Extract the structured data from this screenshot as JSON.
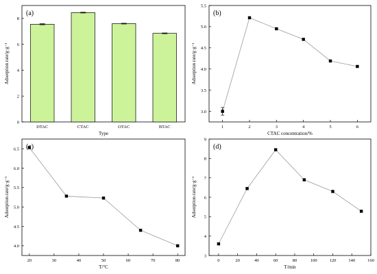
{
  "chart_data": [
    {
      "id": "a",
      "panel_label": "(a)",
      "type": "bar",
      "categories": [
        "DTAC",
        "CTAC",
        "OTAC",
        "BTAC"
      ],
      "values": [
        7.55,
        8.45,
        7.6,
        6.85
      ],
      "errors": [
        0.04,
        0.03,
        0.03,
        0.03
      ],
      "xlabel": "Type",
      "ylabel": "Adsorption rate/g·g⁻¹",
      "ylim": [
        0,
        9
      ],
      "yticks": [
        0,
        2,
        4,
        6,
        8
      ]
    },
    {
      "id": "b",
      "panel_label": "(b)",
      "type": "line",
      "x": [
        1,
        2,
        3,
        4,
        5,
        6
      ],
      "y": [
        3.0,
        5.21,
        4.95,
        4.7,
        4.19,
        4.06
      ],
      "errors": [
        0.09,
        0,
        0,
        0,
        0,
        0
      ],
      "xlabel": "CTAC concentration/%",
      "ylabel": "Adsorption rate/g·g⁻¹",
      "xlim": [
        0.5,
        6.5
      ],
      "ylim": [
        2.75,
        5.5
      ],
      "xticks": [
        1,
        2,
        3,
        4,
        5,
        6
      ],
      "yticks": [
        3.0,
        3.5,
        4.0,
        4.5,
        5.0,
        5.5
      ]
    },
    {
      "id": "c",
      "panel_label": "(c)",
      "type": "line",
      "x": [
        20,
        35,
        50,
        65,
        80
      ],
      "y": [
        6.53,
        5.28,
        5.23,
        4.4,
        4.0
      ],
      "xlabel": "T/°C",
      "ylabel": "Adsorption rate/g·g⁻¹",
      "xlim": [
        17,
        83
      ],
      "ylim": [
        3.75,
        6.75
      ],
      "xticks": [
        20,
        30,
        40,
        50,
        60,
        70,
        80
      ],
      "yticks": [
        4.0,
        4.5,
        5.0,
        5.5,
        6.0,
        6.5
      ]
    },
    {
      "id": "d",
      "panel_label": "(d)",
      "type": "line",
      "x": [
        0,
        30,
        60,
        90,
        120,
        150
      ],
      "y": [
        3.6,
        6.45,
        8.45,
        6.9,
        6.3,
        5.28
      ],
      "xlabel": "T/min",
      "ylabel": "Adsorption rate/g·g⁻¹",
      "xlim": [
        -10,
        160
      ],
      "ylim": [
        3,
        9
      ],
      "xticks": [
        0,
        20,
        40,
        60,
        80,
        100,
        120,
        140,
        160
      ],
      "yticks": [
        3,
        4,
        5,
        6,
        7,
        8,
        9
      ]
    }
  ]
}
